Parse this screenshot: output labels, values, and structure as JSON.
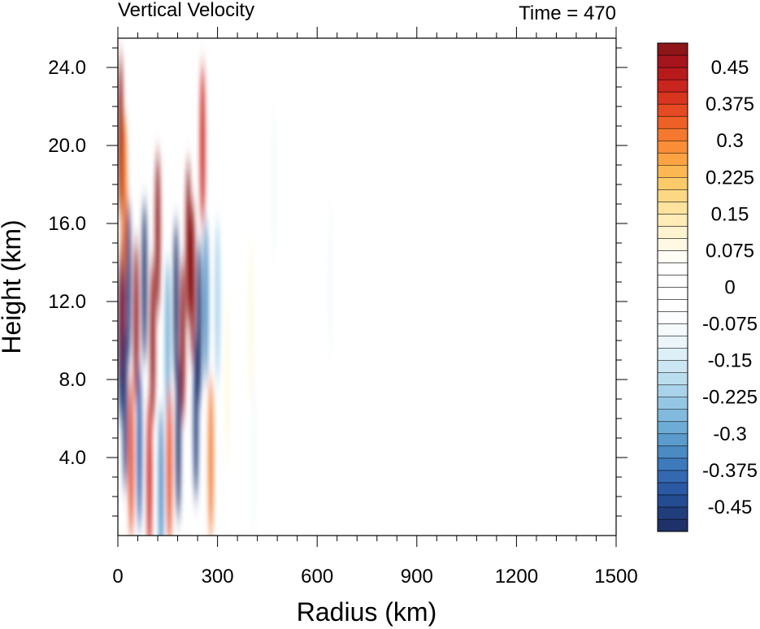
{
  "chart_data": {
    "type": "heatmap",
    "title": "Vertical Velocity",
    "subtitle": "Time = 470",
    "xlabel": "Radius (km)",
    "ylabel": "Height (km)",
    "xlim": [
      0,
      1500
    ],
    "ylim": [
      0,
      25.5
    ],
    "x_ticks": [
      0,
      300,
      600,
      900,
      1200,
      1500
    ],
    "x_tick_labels": [
      "0",
      "300",
      "600",
      "900",
      "1200",
      "1500"
    ],
    "y_ticks": [
      4,
      8,
      12,
      16,
      20,
      24
    ],
    "y_tick_labels": [
      "4.0",
      "8.0",
      "12.0",
      "16.0",
      "20.0",
      "24.0"
    ],
    "colorbar": {
      "min": -0.5,
      "max": 0.5,
      "step": 0.025,
      "labels": [
        "0.45",
        "0.375",
        "0.3",
        "0.225",
        "0.15",
        "0.075",
        "0",
        "-0.075",
        "-0.15",
        "-0.225",
        "-0.3",
        "-0.375",
        "-0.45"
      ],
      "label_values": [
        0.45,
        0.375,
        0.3,
        0.225,
        0.15,
        0.075,
        0,
        -0.075,
        -0.15,
        -0.225,
        -0.3,
        -0.375,
        -0.45
      ],
      "colors": [
        "#1e3269",
        "#213e7c",
        "#244c92",
        "#2b5aa5",
        "#3469b2",
        "#3d7abc",
        "#4a8bc4",
        "#5b9ccc",
        "#6dacd5",
        "#81badd",
        "#95c7e4",
        "#a8d3ea",
        "#bbdeef",
        "#cce6f3",
        "#ddeff7",
        "#ebf5fa",
        "#f5fafc",
        "#fcfdfe",
        "#ffffff",
        "#ffffff",
        "#ffffff",
        "#ffffff",
        "#fffdf5",
        "#fff9e3",
        "#fff3cf",
        "#ffecb7",
        "#fee39e",
        "#fdd884",
        "#fdca6a",
        "#fcb753",
        "#fba343",
        "#f98e37",
        "#f4792e",
        "#ee6126",
        "#e54a22",
        "#d8351f",
        "#c9241d",
        "#b81a1c",
        "#a5151b",
        "#8e1518"
      ]
    },
    "features": [
      {
        "r": 8,
        "z": 10,
        "w": -0.5
      },
      {
        "r": 8,
        "z": 20.5,
        "w": 0.5
      },
      {
        "r": 15,
        "z": 12,
        "w": 0.5
      },
      {
        "r": 20,
        "z": 17.5,
        "w": 0.3
      },
      {
        "r": 22,
        "z": 6.5,
        "w": -0.45
      },
      {
        "r": 32,
        "z": 13,
        "w": -0.45
      },
      {
        "r": 40,
        "z": 4,
        "w": 0.35
      },
      {
        "r": 55,
        "z": 11,
        "w": 0.5
      },
      {
        "r": 65,
        "z": 4.5,
        "w": -0.4
      },
      {
        "r": 80,
        "z": 13,
        "w": -0.5
      },
      {
        "r": 95,
        "z": 3,
        "w": 0.4
      },
      {
        "r": 105,
        "z": 10,
        "w": 0.5
      },
      {
        "r": 120,
        "z": 15.5,
        "w": 0.5
      },
      {
        "r": 130,
        "z": 2.5,
        "w": -0.35
      },
      {
        "r": 150,
        "z": 10,
        "w": -0.3
      },
      {
        "r": 155,
        "z": 3.5,
        "w": 0.35
      },
      {
        "r": 175,
        "z": 12,
        "w": -0.5
      },
      {
        "r": 182,
        "z": 5,
        "w": -0.5
      },
      {
        "r": 195,
        "z": 10,
        "w": 0.5
      },
      {
        "r": 212,
        "z": 15,
        "w": 0.5
      },
      {
        "r": 225,
        "z": 13,
        "w": 0.5
      },
      {
        "r": 235,
        "z": 6,
        "w": -0.45
      },
      {
        "r": 245,
        "z": 11,
        "w": -0.5
      },
      {
        "r": 255,
        "z": 20,
        "w": 0.4
      },
      {
        "r": 265,
        "z": 12,
        "w": -0.35
      },
      {
        "r": 280,
        "z": 4,
        "w": 0.3
      },
      {
        "r": 300,
        "z": 12,
        "w": -0.2
      },
      {
        "r": 330,
        "z": 8,
        "w": 0.1
      },
      {
        "r": 400,
        "z": 11,
        "w": 0.1
      },
      {
        "r": 410,
        "z": 4,
        "w": -0.08
      },
      {
        "r": 470,
        "z": 18,
        "w": -0.1
      },
      {
        "r": 640,
        "z": 13,
        "w": -0.08
      }
    ]
  }
}
